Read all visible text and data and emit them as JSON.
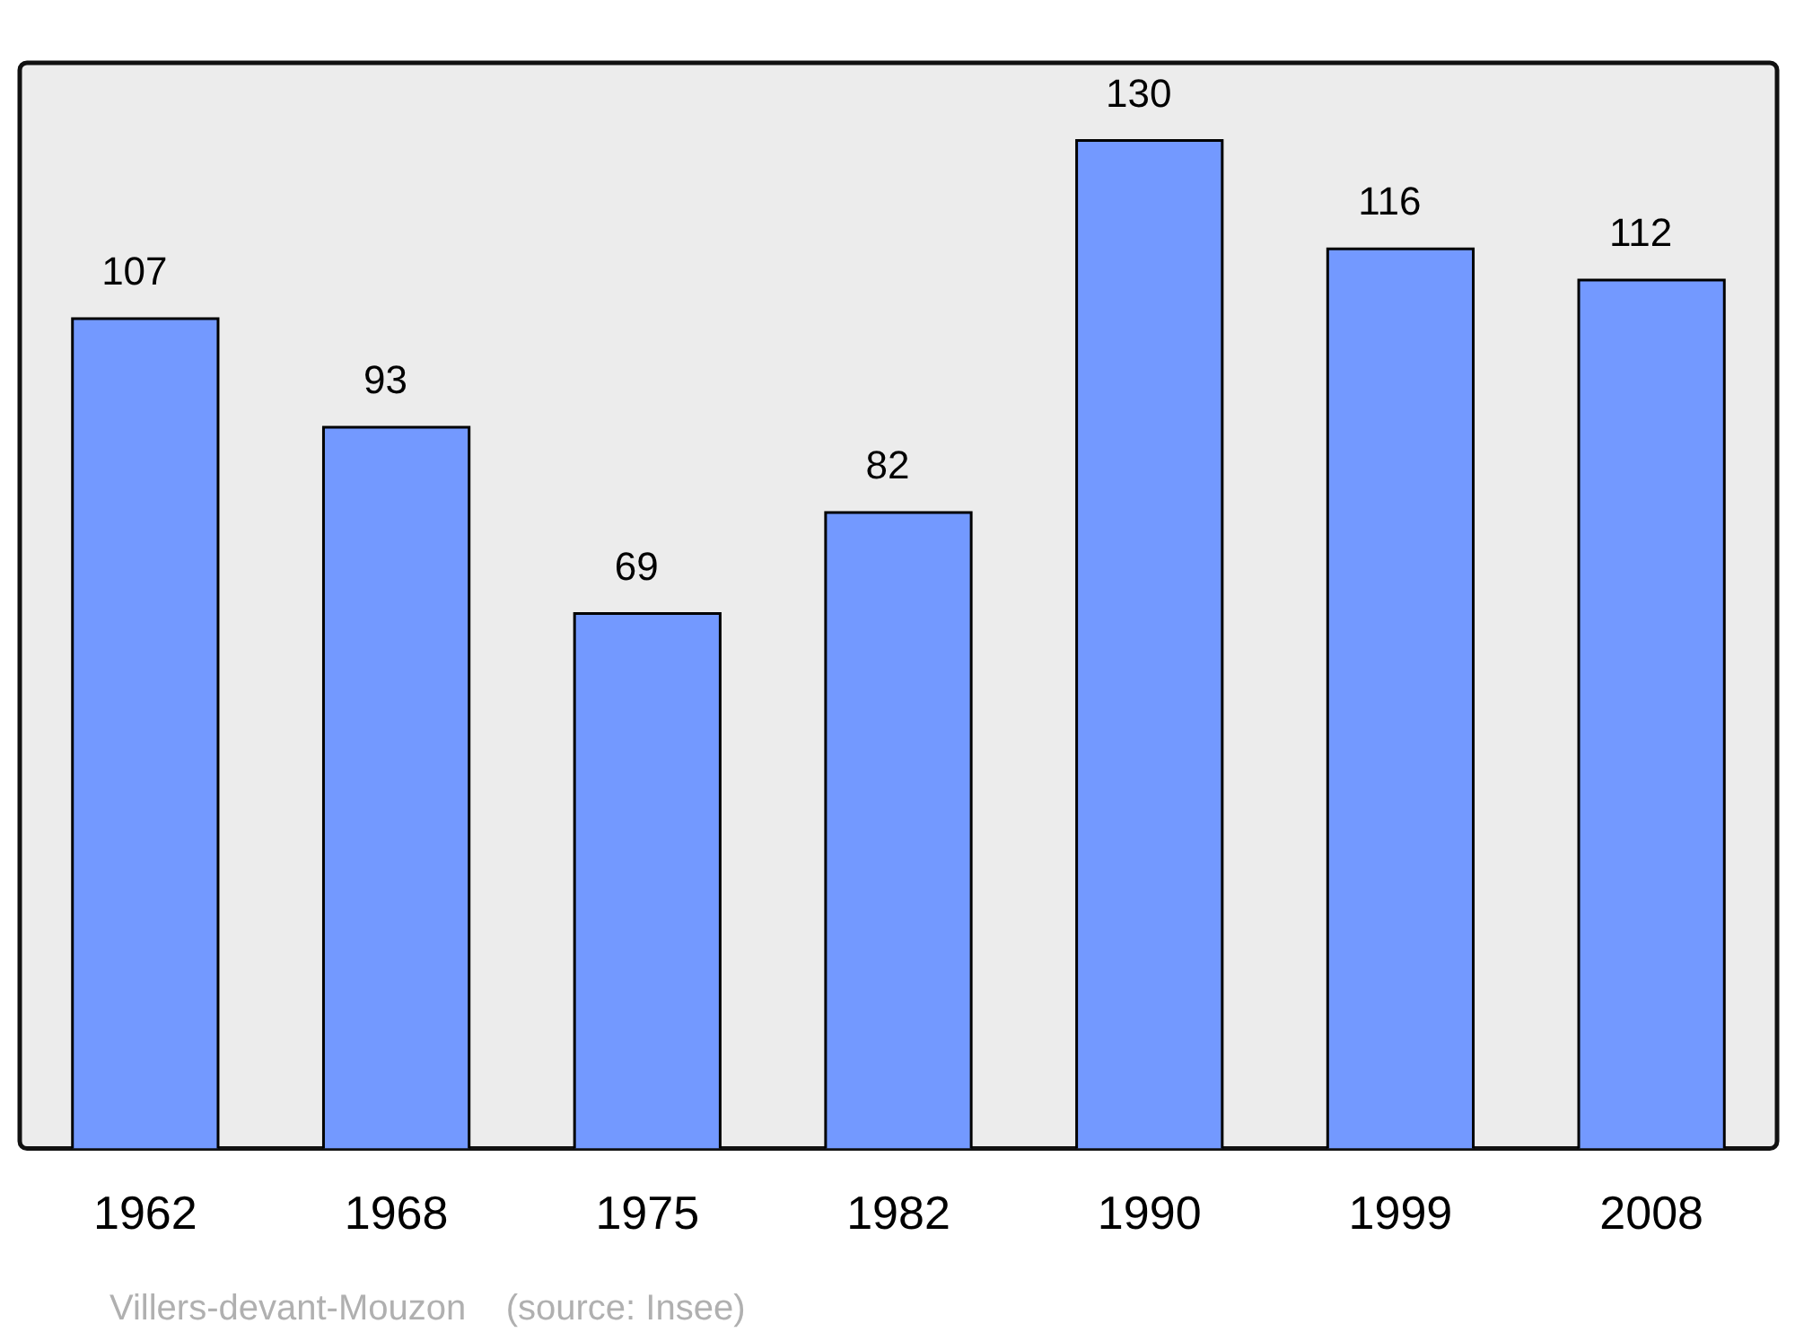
{
  "chart_data": {
    "type": "bar",
    "categories": [
      "1962",
      "1968",
      "1975",
      "1982",
      "1990",
      "1999",
      "2008"
    ],
    "values": [
      107,
      93,
      69,
      82,
      130,
      116,
      112
    ],
    "color": "#7399ff",
    "data_labels": true,
    "grid": false,
    "legend": false,
    "annotations": [
      "Villers-devant-Mouzon    (source: Insee)"
    ]
  }
}
